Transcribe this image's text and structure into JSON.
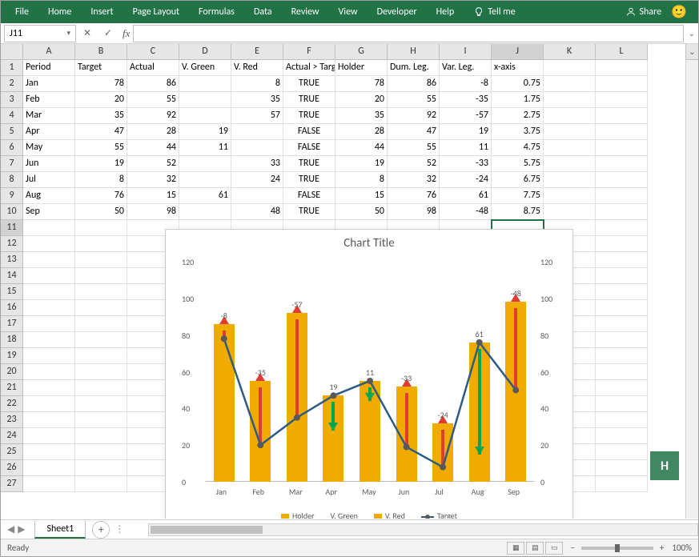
{
  "ribbon": {
    "tabs": [
      "File",
      "Home",
      "Insert",
      "Page Layout",
      "Formulas",
      "Data",
      "Review",
      "View",
      "Developer",
      "Help"
    ],
    "tellme": "Tell me",
    "share": "Share"
  },
  "namebox": "J11",
  "formula": "",
  "columns": [
    "A",
    "B",
    "C",
    "D",
    "E",
    "F",
    "G",
    "H",
    "I",
    "J",
    "K",
    "L"
  ],
  "row_count": 27,
  "headers": [
    "Period",
    "Target",
    "Actual",
    "V. Green",
    "V. Red",
    "Actual > Target",
    "Holder",
    "Dum. Leg.",
    "Var. Leg.",
    "x-axis"
  ],
  "rows": [
    {
      "period": "Jan",
      "target": 78,
      "actual": 86,
      "vgreen": "",
      "vred": 8,
      "gt": "TRUE",
      "holder": 78,
      "dum": 86,
      "var": -8,
      "xaxis": 0.75
    },
    {
      "period": "Feb",
      "target": 20,
      "actual": 55,
      "vgreen": "",
      "vred": 35,
      "gt": "TRUE",
      "holder": 20,
      "dum": 55,
      "var": -35,
      "xaxis": 1.75
    },
    {
      "period": "Mar",
      "target": 35,
      "actual": 92,
      "vgreen": "",
      "vred": 57,
      "gt": "TRUE",
      "holder": 35,
      "dum": 92,
      "var": -57,
      "xaxis": 2.75
    },
    {
      "period": "Apr",
      "target": 47,
      "actual": 28,
      "vgreen": 19,
      "vred": "",
      "gt": "FALSE",
      "holder": 28,
      "dum": 47,
      "var": 19,
      "xaxis": 3.75
    },
    {
      "period": "May",
      "target": 55,
      "actual": 44,
      "vgreen": 11,
      "vred": "",
      "gt": "FALSE",
      "holder": 44,
      "dum": 55,
      "var": 11,
      "xaxis": 4.75
    },
    {
      "period": "Jun",
      "target": 19,
      "actual": 52,
      "vgreen": "",
      "vred": 33,
      "gt": "TRUE",
      "holder": 19,
      "dum": 52,
      "var": -33,
      "xaxis": 5.75
    },
    {
      "period": "Jul",
      "target": 8,
      "actual": 32,
      "vgreen": "",
      "vred": 24,
      "gt": "TRUE",
      "holder": 8,
      "dum": 32,
      "var": -24,
      "xaxis": 6.75
    },
    {
      "period": "Aug",
      "target": 76,
      "actual": 15,
      "vgreen": 61,
      "vred": "",
      "gt": "FALSE",
      "holder": 15,
      "dum": 76,
      "var": 61,
      "xaxis": 7.75
    },
    {
      "period": "Sep",
      "target": 50,
      "actual": 98,
      "vgreen": "",
      "vred": 48,
      "gt": "TRUE",
      "holder": 50,
      "dum": 98,
      "var": -48,
      "xaxis": 8.75
    }
  ],
  "selected_cell": {
    "col": "J",
    "row": 11
  },
  "chart": {
    "title": "Chart Title",
    "type": "combo-bar-line",
    "categories": [
      "Jan",
      "Feb",
      "Mar",
      "Apr",
      "May",
      "Jun",
      "Jul",
      "Aug",
      "Sep"
    ],
    "holder": [
      78,
      20,
      35,
      28,
      44,
      19,
      8,
      15,
      50
    ],
    "stack_top": [
      86,
      55,
      92,
      47,
      55,
      52,
      32,
      76,
      98
    ],
    "stack_dir": [
      "red",
      "red",
      "red",
      "green",
      "green",
      "red",
      "red",
      "green",
      "red"
    ],
    "target_line": [
      78,
      20,
      35,
      47,
      55,
      19,
      8,
      76,
      50
    ],
    "data_labels": [
      -8,
      -35,
      -57,
      19,
      11,
      -33,
      -24,
      61,
      -48
    ],
    "ylim": [
      0,
      120
    ],
    "ytick_step": 20,
    "bar_color": "#f0ab00",
    "stick_color": "#595959",
    "red_arrow": "#e03c31",
    "green_arrow": "#00a651",
    "line_color": "#2e5b84",
    "marker_color": "#595959",
    "grid_color": "#e0e0e0",
    "bg": "#ffffff",
    "legend": [
      "Holder",
      "V. Green",
      "V. Red",
      "Target"
    ],
    "title_fontsize": 15,
    "axis_fontsize": 10
  },
  "sheets": {
    "active": "Sheet1"
  },
  "status": {
    "ready": "Ready",
    "zoom": "100%"
  },
  "badge": "H"
}
